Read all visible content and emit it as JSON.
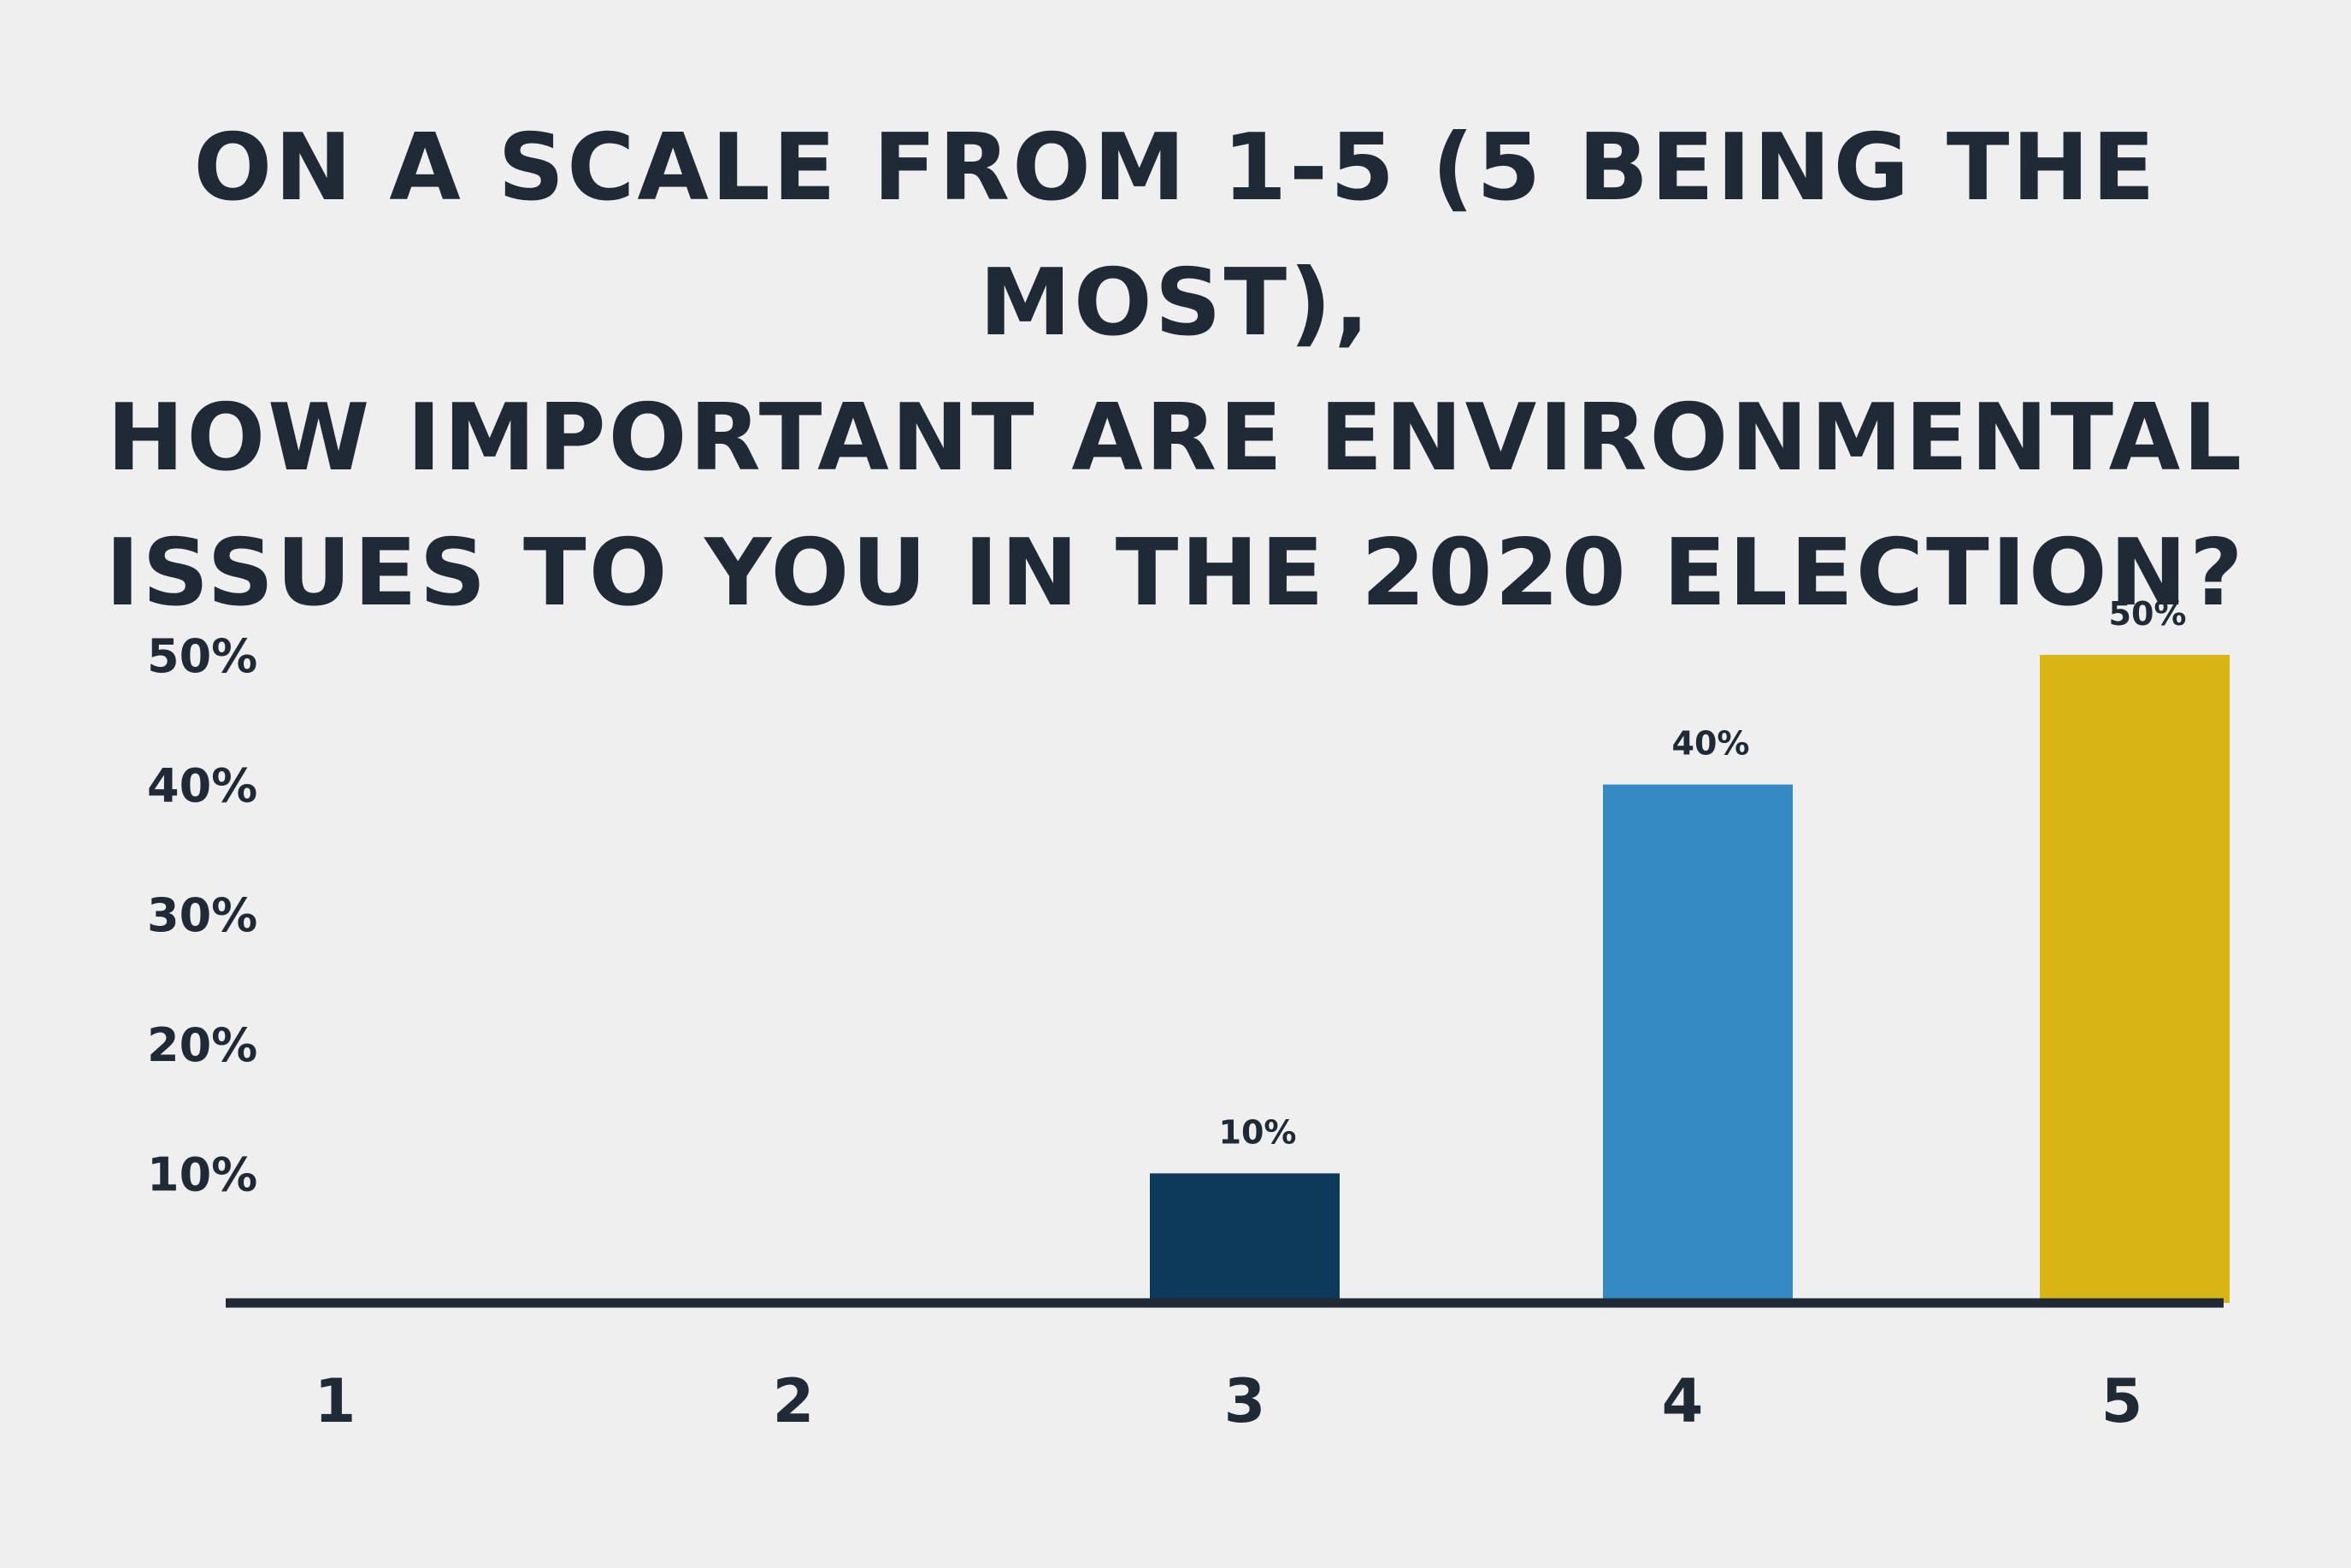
{
  "chart_data": {
    "type": "bar",
    "title_lines": [
      "ON A SCALE FROM 1-5 (5 BEING THE MOST),",
      "HOW IMPORTANT ARE ENVIRONMENTAL",
      "ISSUES TO YOU IN THE 2020 ELECTION?"
    ],
    "categories": [
      "1",
      "2",
      "3",
      "4",
      "5"
    ],
    "values": [
      0,
      0,
      10,
      40,
      50
    ],
    "data_labels": [
      "",
      "",
      "10%",
      "40%",
      "50%"
    ],
    "bar_colors": [
      "#0d3a5b",
      "#0d3a5b",
      "#0d3a5b",
      "#348bc3",
      "#d8b414"
    ],
    "y_ticks": [
      10,
      20,
      30,
      40,
      50
    ],
    "y_tick_labels": [
      "10%",
      "20%",
      "30%",
      "40%",
      "50%"
    ],
    "ylim": [
      0,
      50
    ],
    "axis_color": "#1f2a36",
    "grid": false,
    "legend": "none"
  }
}
